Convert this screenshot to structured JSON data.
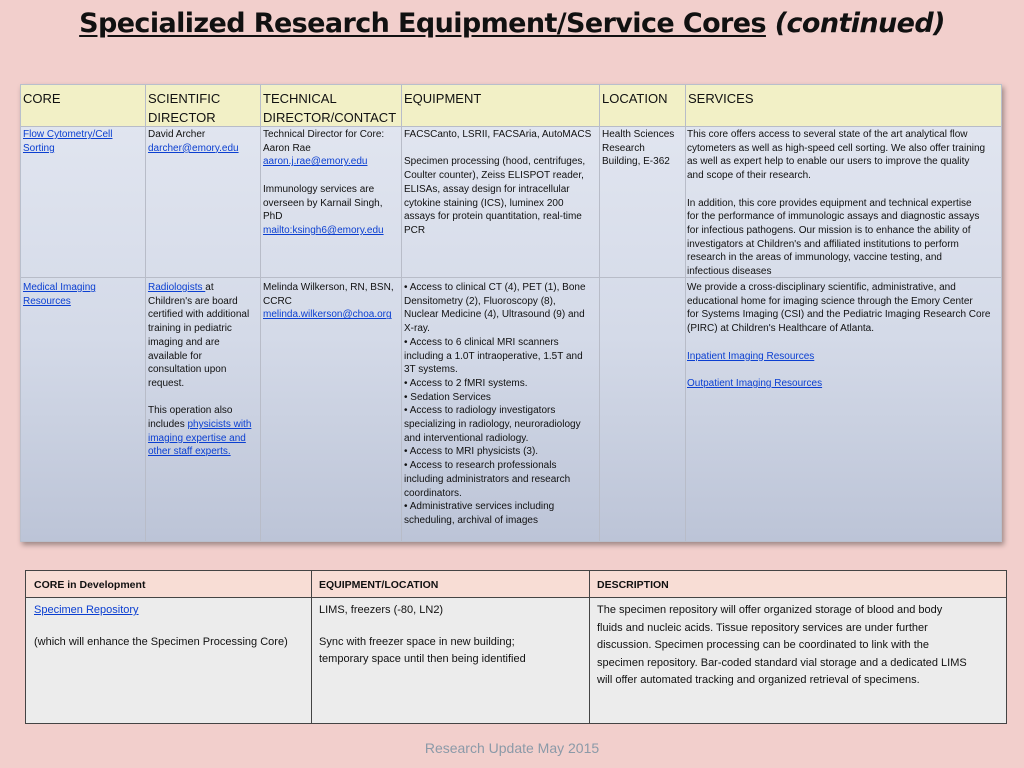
{
  "title": {
    "main": "Specialized Research Equipment/Service Cores",
    "continued": "(continued)"
  },
  "cores_table": {
    "headers": {
      "core": "CORE",
      "sci_1": "SCIENTIFIC",
      "sci_2": "DIRECTOR",
      "tech_1": "TECHNICAL",
      "tech_2": "DIRECTOR/CONTACT",
      "equipment": "EQUIPMENT",
      "location": "LOCATION",
      "services": "SERVICES"
    },
    "rows": [
      {
        "core_1": "Flow Cytometry/Cell",
        "core_2": "Sorting",
        "sci_name": "David Archer",
        "sci_email": "darcher@emory.edu",
        "tech_l1": "Technical Director for Core:",
        "tech_l2": "Aaron Rae",
        "tech_email": "aaron.j.rae@emory.edu",
        "tech_p2_l1": "Immunology services are",
        "tech_p2_l2": "overseen by Karnail Singh,",
        "tech_p2_l3": "PhD",
        "tech_mail2": "mailto:ksingh6@emory.edu",
        "eq_l1": "FACSCanto, LSRII, FACSAria, AutoMACS",
        "eq_l2": "Specimen processing (hood, centrifuges,",
        "eq_l3": "Coulter counter), Zeiss ELISPOT reader,",
        "eq_l4": "ELISAs, assay design for intracellular",
        "eq_l5": "cytokine staining (ICS), luminex 200",
        "eq_l6": "assays for protein quantitation, real-time",
        "eq_l7": "PCR",
        "loc_l1": "Health Sciences",
        "loc_l2": "Research",
        "loc_l3": "Building, E-362",
        "svc_l1": "This core offers access to several state of the art analytical flow",
        "svc_l2": "cytometers as well as high-speed cell sorting. We also offer training",
        "svc_l3": "as well as expert help to enable our users to improve the quality",
        "svc_l4": "and scope of their research.",
        "svc_l5": "In addition, this core provides equipment and technical expertise",
        "svc_l6": "for the performance of immunologic assays and diagnostic assays",
        "svc_l7": "for infectious pathogens. Our mission is to enhance the ability of",
        "svc_l8": "investigators at Children's and affiliated institutions to perform",
        "svc_l9": "research in the areas of immunology, vaccine testing, and",
        "svc_l10": "infectious diseases"
      },
      {
        "core_1": "Medical Imaging",
        "core_2": "Resources",
        "sci_link": "Radiologists ",
        "sci_l1_rest": "at",
        "sci_l2": "Children's are board",
        "sci_l3": "certified with additional",
        "sci_l4": "training in pediatric",
        "sci_l5": "imaging and are",
        "sci_l6": "available for",
        "sci_l7": "consultation upon",
        "sci_l8": "request.",
        "sci_p2_l1": "This operation also",
        "sci_p2_l2_pre": "includes ",
        "sci_p2_l2_link": "physicists with",
        "sci_p2_l3_link": "imaging expertise and",
        "sci_p2_l4_link": "other staff experts.",
        "tech_l1": "Melinda  Wilkerson, RN, BSN,",
        "tech_l2": "CCRC",
        "tech_email": "melinda.wilkerson@choa.org",
        "eq_l1": "• Access to clinical CT (4), PET (1), Bone",
        "eq_l2": "Densitometry (2), Fluoroscopy (8),",
        "eq_l3": "Nuclear Medicine (4), Ultrasound (9) and",
        "eq_l4": "X-ray.",
        "eq_l5": "• Access to 6 clinical MRI scanners",
        "eq_l6": "including a 1.0T intraoperative, 1.5T and",
        "eq_l7": "3T systems.",
        "eq_l8": "• Access to 2 fMRI systems.",
        "eq_l9": "• Sedation Services",
        "eq_l10": "• Access to radiology investigators",
        "eq_l11": "specializing in radiology, neuroradiology",
        "eq_l12": "and interventional radiology.",
        "eq_l13": "• Access to MRI physicists (3).",
        "eq_l14": "• Access to research professionals",
        "eq_l15": "including administrators and research",
        "eq_l16": "coordinators.",
        "eq_l17": "• Administrative services including",
        "eq_l18": "scheduling, archival of images",
        "svc_l1": "We provide a cross-disciplinary scientific, administrative, and",
        "svc_l2": "educational home for imaging science through the Emory Center",
        "svc_l3": "for Systems Imaging (CSI) and the Pediatric Imaging Research Core",
        "svc_l4": "(PIRC) at Children's Healthcare of Atlanta.",
        "svc_link1": "Inpatient Imaging Resources",
        "svc_link2": "Outpatient Imaging Resources"
      }
    ]
  },
  "dev_table": {
    "headers": {
      "core": "CORE in Development",
      "equipment": "EQUIPMENT/LOCATION",
      "description": "DESCRIPTION"
    },
    "row": {
      "core_link": "Specimen Repository",
      "core_note": "(which will enhance the Specimen Processing Core)",
      "eq_l1": "LIMS, freezers (-80, LN2)",
      "eq_l2": "Sync with freezer space in new building;",
      "eq_l3": "temporary space until then being identified",
      "desc_l1": "The specimen repository will offer organized storage of blood and body",
      "desc_l2": "fluids and nucleic acids. Tissue repository services are under further",
      "desc_l3": "discussion. Specimen processing can be coordinated to link with the",
      "desc_l4": "specimen repository. Bar-coded standard vial storage and a dedicated LIMS",
      "desc_l5": "will offer automated tracking and organized retrieval of specimens."
    }
  },
  "footer": "Research Update May 2015",
  "colors": {
    "background": "#f2cfcc",
    "header_fill": "#f2f0c6",
    "link": "#0b3fd1",
    "dev_header_fill": "#f8ddd5"
  }
}
